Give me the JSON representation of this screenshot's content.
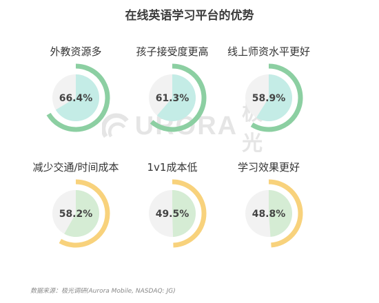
{
  "title": "在线英语学习平台的优势",
  "watermark": {
    "latin": "URORA",
    "cn": "极光",
    "logo_icon": "aurora-logo-icon"
  },
  "source": "数据来源：极光调研(Aurora Mobile, NASDAQ: JG)",
  "colors": {
    "green_ring": "#8ccfa2",
    "green_fill": "#c4ece6",
    "yellow_ring": "#f8d27c",
    "yellow_fill": "#d5ecd4",
    "track": "#f2f2f2"
  },
  "chart_data": {
    "type": "pie",
    "unit": "%",
    "items": [
      {
        "label": "外教资源多",
        "value": 66.4,
        "display": "66.4%",
        "group": "green"
      },
      {
        "label": "孩子接受度更高",
        "value": 61.3,
        "display": "61.3%",
        "group": "green"
      },
      {
        "label": "线上师资水平更好",
        "value": 58.9,
        "display": "58.9%",
        "group": "green"
      },
      {
        "label": "减少交通/时间成本",
        "value": 58.2,
        "display": "58.2%",
        "group": "yellow"
      },
      {
        "label": "1v1成本低",
        "value": 49.5,
        "display": "49.5%",
        "group": "yellow"
      },
      {
        "label": "学习效果更好",
        "value": 48.8,
        "display": "48.8%",
        "group": "yellow"
      }
    ]
  }
}
